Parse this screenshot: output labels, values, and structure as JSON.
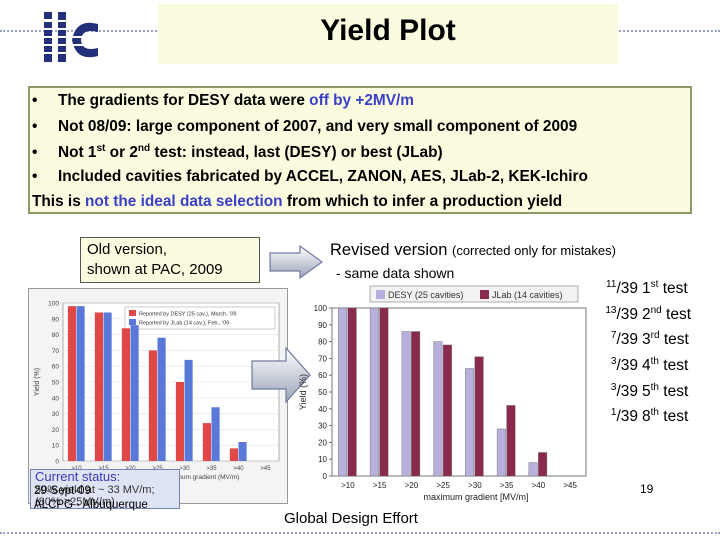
{
  "header": {
    "title": "Yield Plot"
  },
  "bullets": [
    {
      "marker": "•",
      "parts": [
        "The gradients for DESY data were ",
        "off by +2MV/m"
      ]
    },
    {
      "marker": "•",
      "text": "Not 08/09: large component of 2007, and very small component of 2009"
    },
    {
      "marker": "•",
      "text_a": "Not 1",
      "sup1": "st",
      "text_b": " or 2",
      "sup2": "nd",
      "text_c": " test: instead, last (DESY) or best (JLab)"
    },
    {
      "marker": "•",
      "text": "Included cavities fabricated by ACCEL, ZANON, AES, JLab-2, KEK-Ichiro"
    }
  ],
  "conclusion": {
    "a": "This is ",
    "b": "not the ideal data selection",
    "c": " from which to infer a production yield"
  },
  "old_label": {
    "line1": "Old version,",
    "line2": "shown at PAC, 2009"
  },
  "revised_label": {
    "main": "Revised version ",
    "note": "(corrected only for mistakes)"
  },
  "same_data": "- same data shown",
  "ratios": [
    {
      "num": "11",
      "den": "39",
      "n": "1",
      "ord": "st",
      "word": " test"
    },
    {
      "num": "13",
      "den": "39",
      "n": "2",
      "ord": "nd",
      "word": " test"
    },
    {
      "num": "7",
      "den": "39",
      "n": "3",
      "ord": "rd",
      "word": " test"
    },
    {
      "num": "3",
      "den": "39",
      "n": "4",
      "ord": "th",
      "word": " test"
    },
    {
      "num": "3",
      "den": "39",
      "n": "5",
      "ord": "th",
      "word": " test"
    },
    {
      "num": "1",
      "den": "39",
      "n": "8",
      "ord": "th",
      "word": " test"
    }
  ],
  "old_chart": {
    "legend": [
      "Reported by DESY (25 cav.), March, '09",
      "Reported by JLab (14 cav.), Feb., '09"
    ],
    "ylabel": "Yield (%)",
    "xlabel": "maximum gradient (MV/m)",
    "categories": [
      ">10",
      ">15",
      ">20",
      ">25",
      ">30",
      ">35",
      ">40",
      ">45"
    ],
    "yticks": [
      "100",
      "90",
      "80",
      "70",
      "60",
      "50",
      "40",
      "30",
      "20",
      "10",
      "0"
    ],
    "colors": {
      "desy": "#e04848",
      "jlab": "#5a78d8"
    }
  },
  "status_box": {
    "h": "Current status:",
    "l1": "50% yield at ~ 33 MV/m;",
    "l2": "(80% >25MV/m)"
  },
  "chart_data": {
    "type": "bar",
    "categories": [
      ">10",
      ">15",
      ">20",
      ">25",
      ">30",
      ">35",
      ">40",
      ">45"
    ],
    "series": [
      {
        "name": "DESY (25 cavities)",
        "values": [
          100,
          100,
          86,
          80,
          64,
          28,
          8,
          0
        ],
        "color": "#b8b0dc"
      },
      {
        "name": "JLab (14 cavities)",
        "values": [
          100,
          100,
          86,
          78,
          71,
          42,
          14,
          0
        ],
        "color": "#8a2a4e"
      }
    ],
    "yticks": [
      "0",
      "10",
      "20",
      "30",
      "40",
      "50",
      "60",
      "70",
      "80",
      "90",
      "100"
    ],
    "ylim": [
      0,
      100
    ],
    "ylabel": "Yield (%)",
    "xlabel": "maximum gradient [MV/m]"
  },
  "footer": {
    "date": "29-Sept-09",
    "venue": "ALCPG - Albuquerque",
    "center": "Global Design Effort",
    "page": "19"
  },
  "logo": {
    "text": "ilc"
  }
}
